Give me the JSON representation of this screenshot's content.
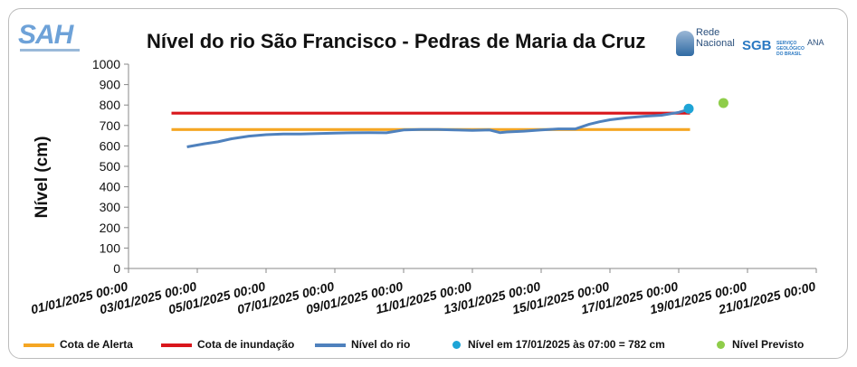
{
  "chart_data": {
    "type": "line",
    "title": "Nível do rio São Francisco - Pedras de Maria da Cruz",
    "ylabel": "Nível (cm)",
    "xlabel": "",
    "ylim": [
      0,
      1000
    ],
    "yticks": [
      0,
      100,
      200,
      300,
      400,
      500,
      600,
      700,
      800,
      900,
      1000
    ],
    "xlim_days": [
      0,
      20
    ],
    "xtick_labels": [
      "01/01/2025 00:00",
      "03/01/2025 00:00",
      "05/01/2025 00:00",
      "07/01/2025 00:00",
      "09/01/2025 00:00",
      "11/01/2025 00:00",
      "13/01/2025 00:00",
      "15/01/2025 00:00",
      "17/01/2025 00:00",
      "19/01/2025 00:00",
      "21/01/2025 00:00"
    ],
    "grid": false,
    "legend_position": "bottom",
    "series": [
      {
        "name": "Cota de Alerta",
        "color": "#f5a623",
        "kind": "hline",
        "x": [
          1.25,
          16.33
        ],
        "values": [
          680,
          680
        ]
      },
      {
        "name": "Cota de inundação",
        "color": "#d9161c",
        "kind": "hline",
        "x": [
          1.25,
          16.33
        ],
        "values": [
          760,
          760
        ]
      },
      {
        "name": "Nível do rio",
        "color": "#4f81bd",
        "kind": "line",
        "x": [
          1.7,
          2.2,
          2.6,
          3.0,
          3.5,
          4.0,
          4.5,
          5.0,
          5.5,
          6.0,
          6.5,
          7.0,
          7.5,
          8.0,
          8.5,
          9.0,
          9.5,
          10.0,
          10.5,
          10.8,
          11.0,
          11.5,
          12.0,
          12.5,
          13.0,
          13.4,
          13.7,
          14.0,
          14.5,
          15.0,
          15.5,
          16.0,
          16.33
        ],
        "values": [
          595,
          610,
          620,
          635,
          648,
          655,
          658,
          658,
          660,
          663,
          664,
          665,
          664,
          678,
          680,
          680,
          678,
          676,
          678,
          665,
          668,
          672,
          678,
          683,
          683,
          706,
          718,
          728,
          738,
          745,
          750,
          764,
          780
        ]
      },
      {
        "name": "Nível em 17/01/2025 às 07:00 = 782 cm",
        "color": "#1ea4d6",
        "kind": "point",
        "x": [
          16.29
        ],
        "values": [
          782
        ]
      },
      {
        "name": "Nível Previsto",
        "color": "#8fcd4a",
        "kind": "point",
        "x": [
          17.3
        ],
        "values": [
          810
        ]
      }
    ]
  },
  "logos": {
    "sah": "SAH",
    "rede_line1": "Rede",
    "rede_line2": "Nacional",
    "sgb": "SGB",
    "sgb_sub": "SERVIÇO GEOLÓGICO DO BRASIL",
    "ana": "ANA"
  }
}
